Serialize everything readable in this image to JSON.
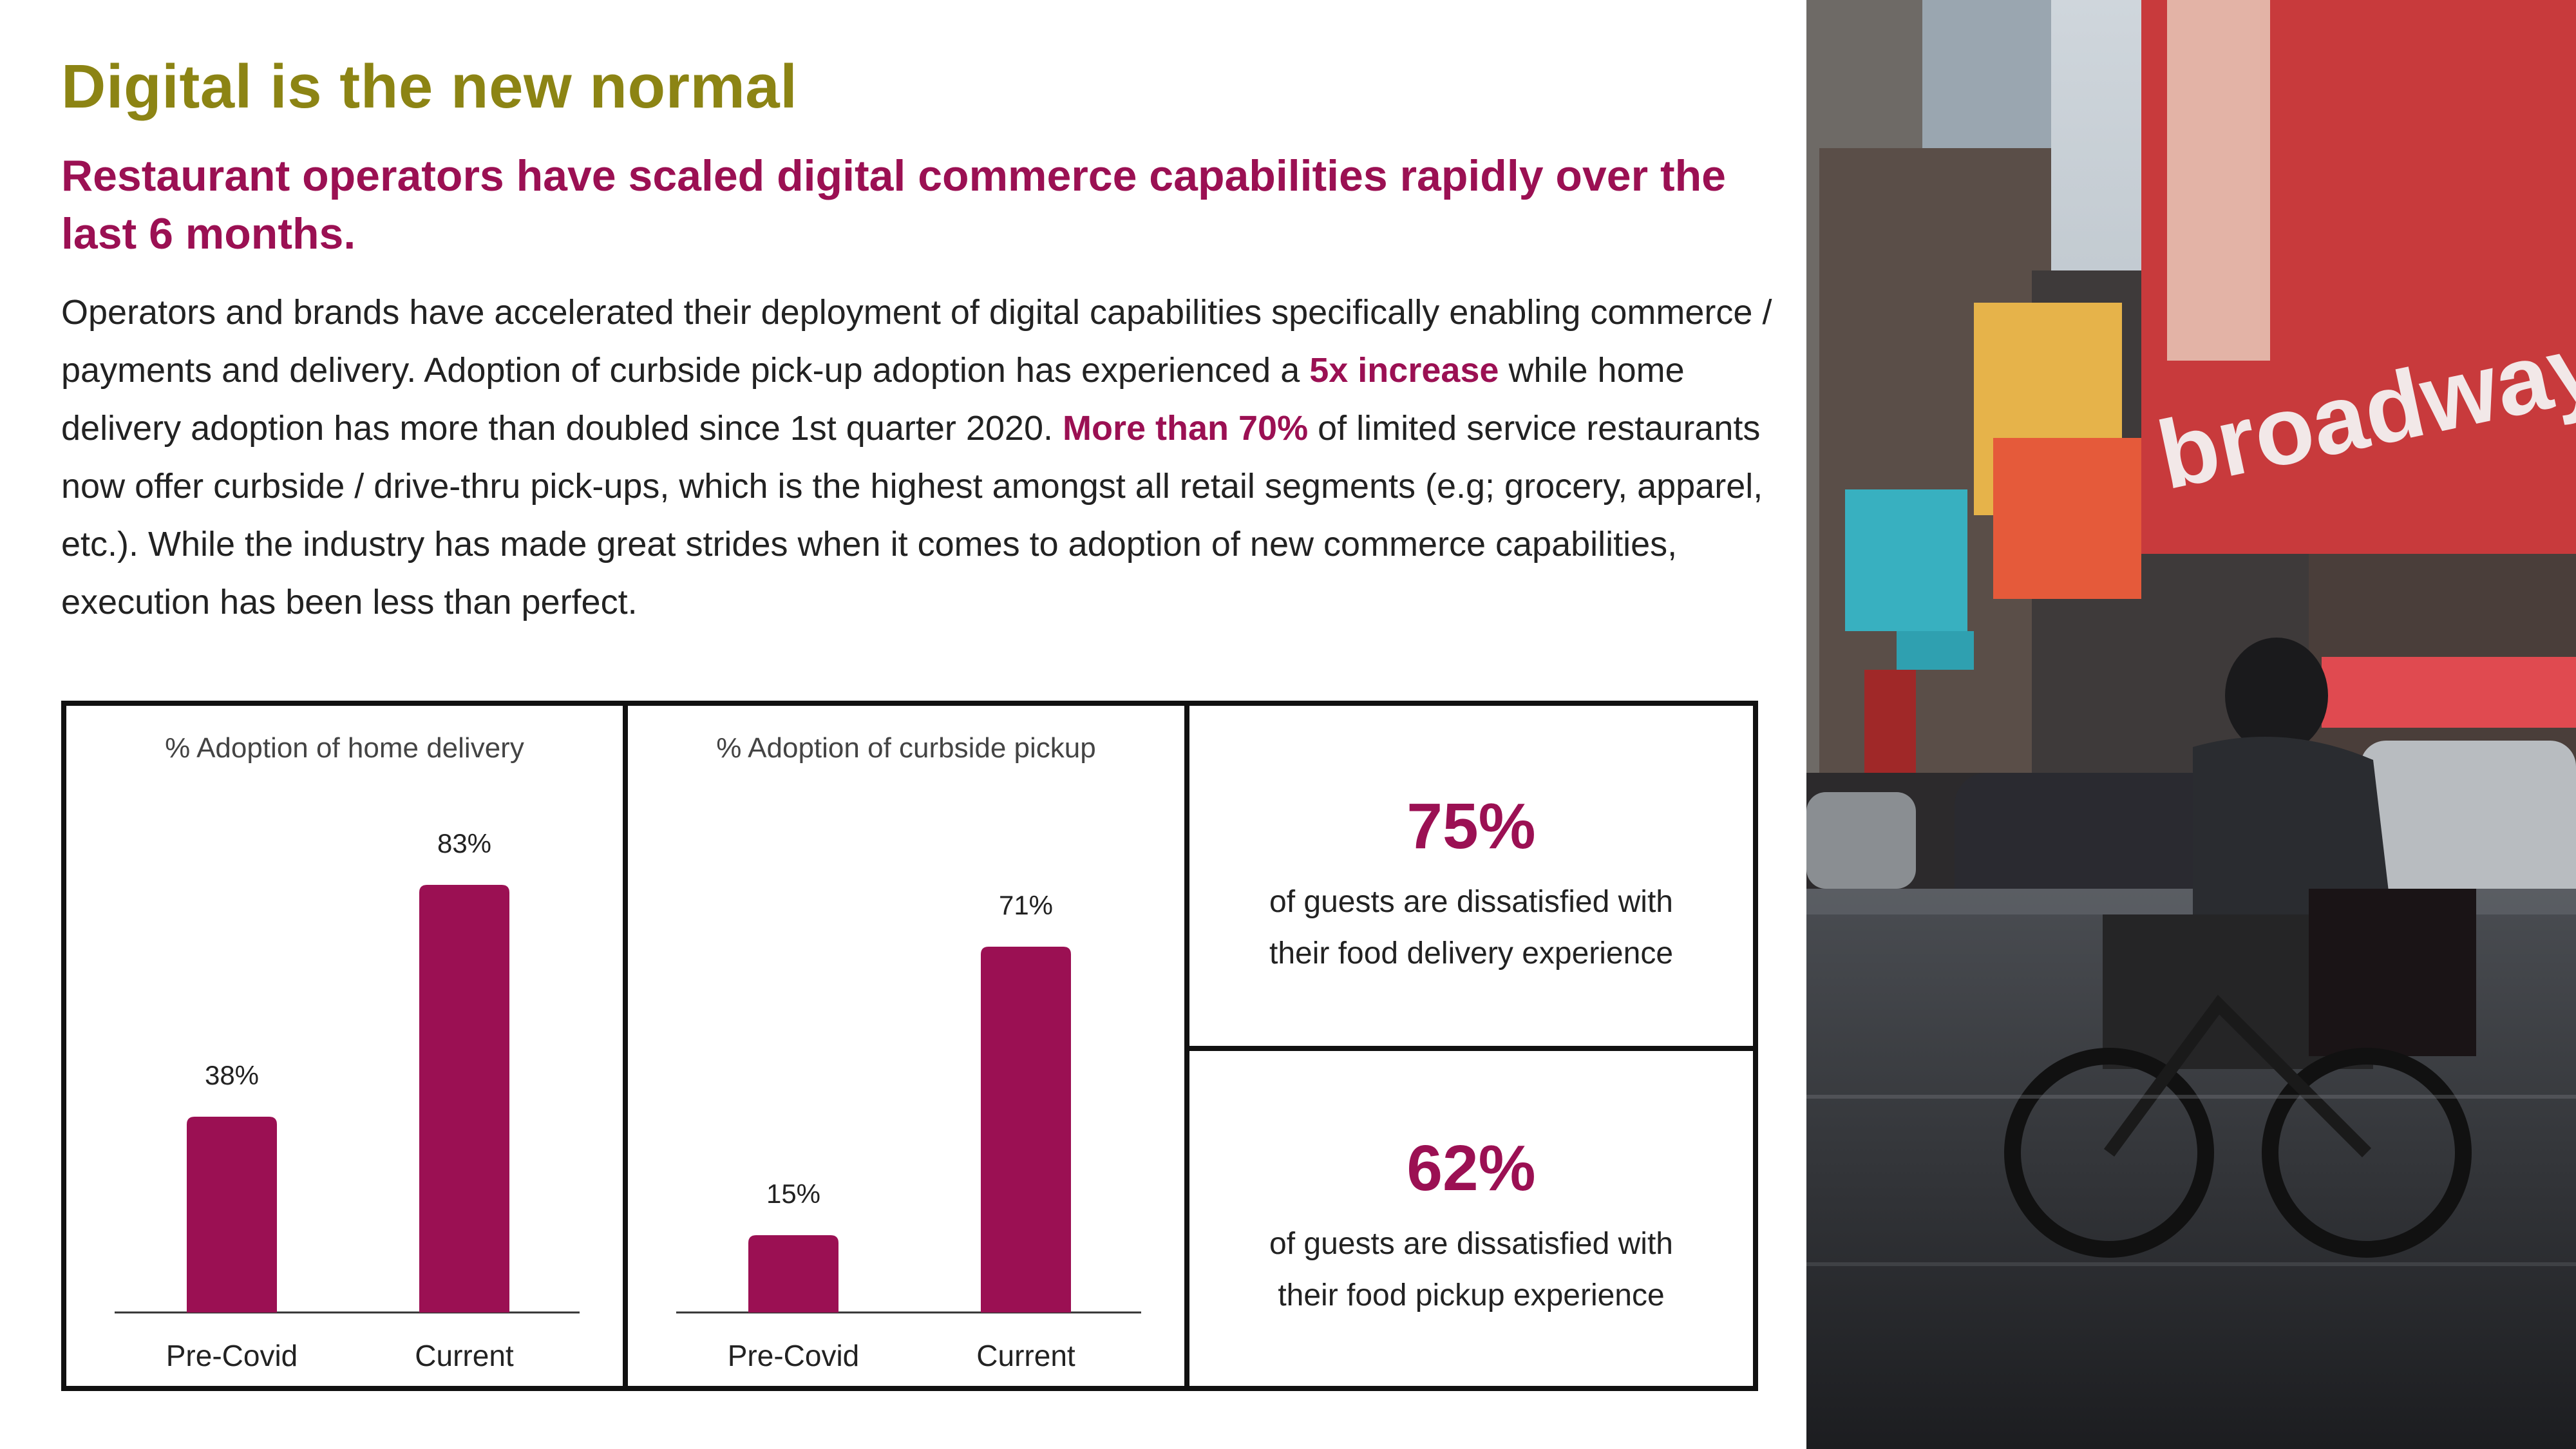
{
  "header": {
    "title": "Digital is the new normal",
    "subtitle": "Restaurant operators have scaled digital commerce capabilities rapidly over the last 6 months."
  },
  "body": {
    "p1": "Operators and brands have accelerated their deployment of digital capabilities specifically enabling commerce / payments and delivery. Adoption of curbside pick-up adoption has experienced a ",
    "h1": "5x increase",
    "p2": " while home delivery adoption has more than doubled since 1st quarter 2020. ",
    "h2": "More than 70%",
    "p3": " of limited service restaurants now offer curbside / drive-thru pick-ups,  which is the highest amongst all retail segments (e.g; grocery, apparel, etc.). While the industry has made great strides when it comes to adoption of new commerce capabilities, execution has been less than perfect."
  },
  "chart_data": [
    {
      "type": "bar",
      "title": "% Adoption of home delivery",
      "categories": [
        "Pre-Covid",
        "Current"
      ],
      "values": [
        38,
        83
      ],
      "data_labels": [
        "38%",
        "83%"
      ],
      "ylim": [
        0,
        100
      ],
      "grid": false,
      "color": "#9b1053"
    },
    {
      "type": "bar",
      "title": "% Adoption of curbside pickup",
      "categories": [
        "Pre-Covid",
        "Current"
      ],
      "values": [
        15,
        71
      ],
      "data_labels": [
        "15%",
        "71%"
      ],
      "ylim": [
        0,
        100
      ],
      "grid": false,
      "color": "#9b1053"
    }
  ],
  "stats": [
    {
      "value": "75%",
      "line1": "of guests are dissatisfied with",
      "line2": "their food delivery experience"
    },
    {
      "value": "62%",
      "line1": "of guests are dissatisfied with",
      "line2": "their food pickup experience"
    }
  ],
  "photo": {
    "billboard_text": "broadway",
    "icon": "street-photo-delivery-cyclist"
  },
  "colors": {
    "accent": "#9b1053",
    "title": "#8c8414",
    "border": "#111111"
  }
}
